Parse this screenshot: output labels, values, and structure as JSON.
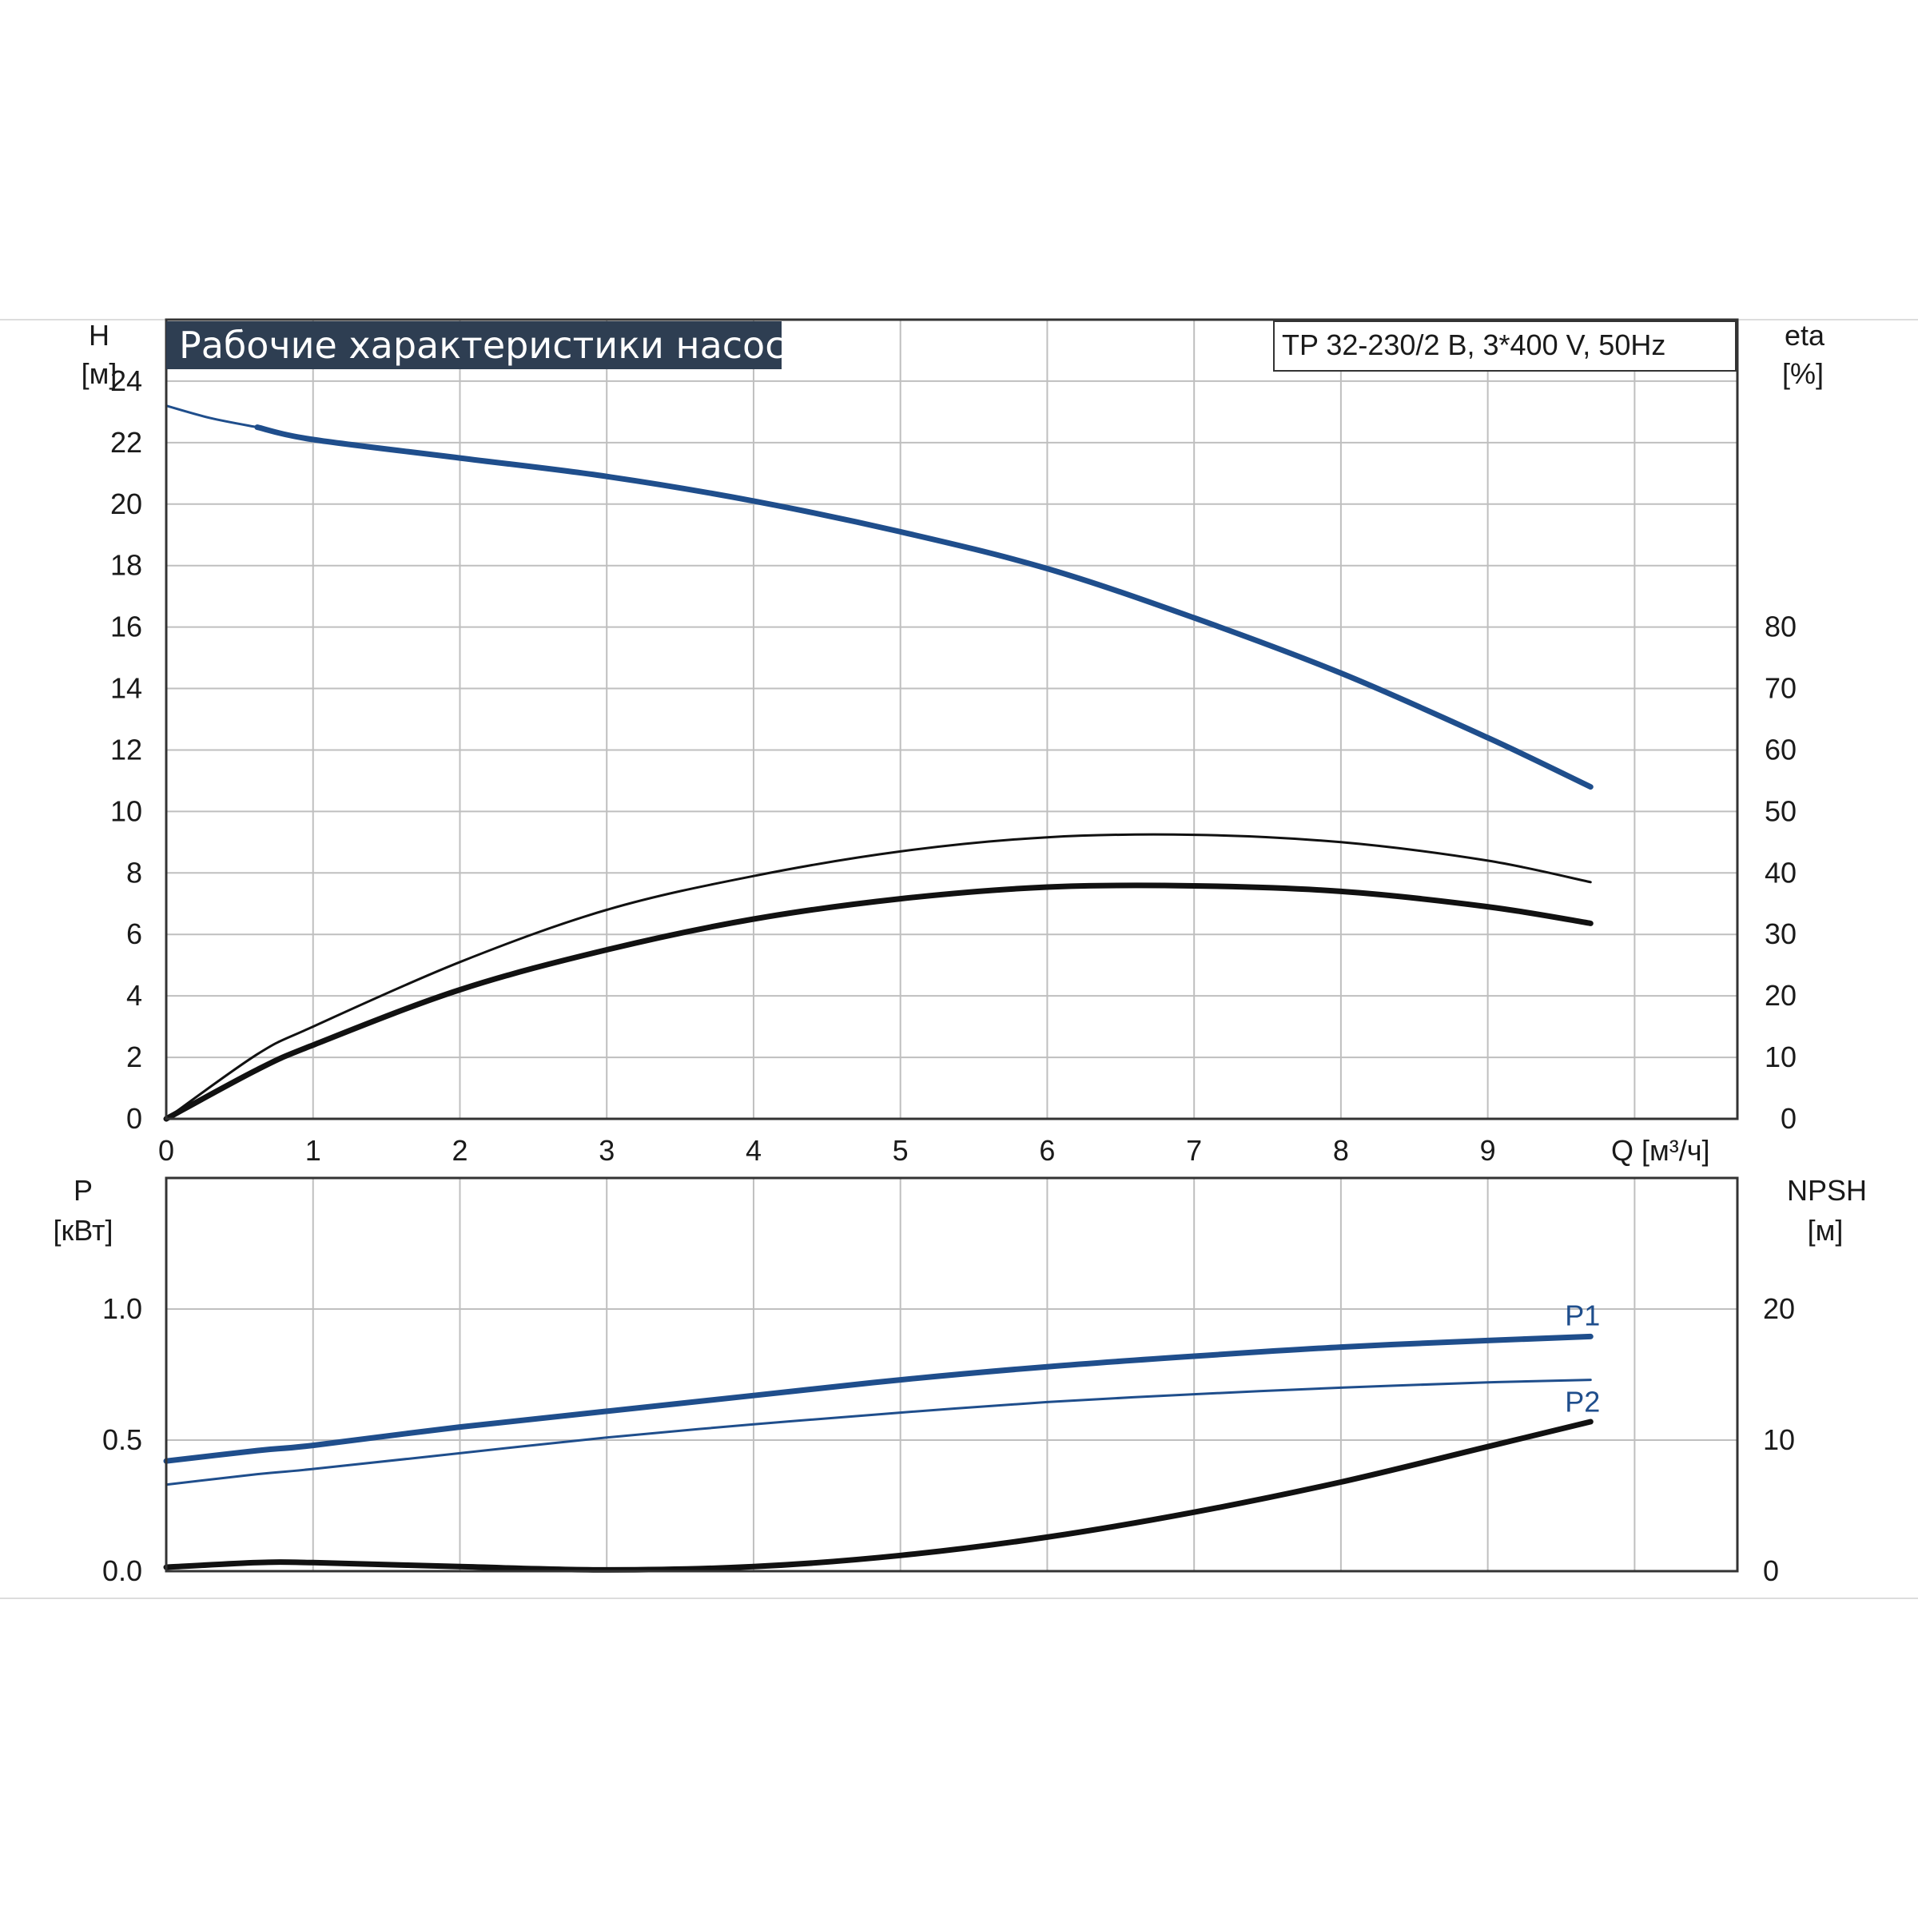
{
  "title": "Рабочие характеристики насоса",
  "model": "TP 32-230/2 B, 3*400 V, 50Hz",
  "colors": {
    "blue": "#1f4e8c",
    "black": "#111111",
    "grid": "#bfbfbf",
    "title_bg": "#2e3e52"
  },
  "axes": {
    "h_label": "H",
    "h_unit": "[м]",
    "eta_label": "eta",
    "eta_unit": "[%]",
    "q_label": "Q [м³/ч]",
    "p_label": "P",
    "p_unit": "[кВт]",
    "npsh_label": "NPSH",
    "npsh_unit": "[м]"
  },
  "chart_data": [
    {
      "type": "line",
      "panel": "upper",
      "x_label": "Q [м³/ч]",
      "x_ticks": [
        "0",
        "1",
        "2",
        "3",
        "4",
        "5",
        "6",
        "7",
        "8",
        "9"
      ],
      "xlim": [
        0,
        10.7
      ],
      "y_left": {
        "label": "H [м]",
        "ylim": [
          0,
          26
        ],
        "ticks": [
          "0",
          "2",
          "4",
          "6",
          "8",
          "10",
          "12",
          "14",
          "16",
          "18",
          "20",
          "22",
          "24"
        ]
      },
      "y_right": {
        "label": "eta [%]",
        "ylim": [
          0,
          130
        ],
        "ticks": [
          "0",
          "10",
          "20",
          "30",
          "40",
          "50",
          "60",
          "70",
          "80"
        ]
      },
      "grid": true,
      "series": [
        {
          "key": "H-extension",
          "axis": "left",
          "style": "blue-thin",
          "x": [
            0,
            0.3,
            0.62
          ],
          "y": [
            23.2,
            22.8,
            22.5
          ]
        },
        {
          "key": "H",
          "axis": "left",
          "style": "blue-thick",
          "x": [
            0.62,
            1,
            2,
            3,
            4,
            5,
            6,
            7,
            8,
            9,
            9.7
          ],
          "y": [
            22.5,
            22.1,
            21.5,
            20.9,
            20.1,
            19.1,
            17.9,
            16.3,
            14.5,
            12.4,
            10.8
          ]
        },
        {
          "key": "eta-thin",
          "axis": "right",
          "style": "black-thin",
          "x": [
            0,
            0.62,
            1,
            2,
            3,
            4,
            5,
            6,
            7,
            8,
            9,
            9.7
          ],
          "y": [
            0,
            10.5,
            15,
            25.5,
            34,
            39.5,
            43.5,
            45.8,
            46.2,
            45,
            42,
            38.5
          ]
        },
        {
          "key": "eta-thick",
          "axis": "right",
          "style": "black-thick",
          "x": [
            0,
            0.62,
            1,
            2,
            3,
            4,
            5,
            6,
            7,
            8,
            9,
            9.7
          ],
          "y": [
            0,
            8,
            12,
            21,
            27.5,
            32.5,
            35.8,
            37.7,
            37.9,
            37,
            34.5,
            31.8
          ]
        }
      ]
    },
    {
      "type": "line",
      "panel": "lower",
      "xlim": [
        0,
        10.7
      ],
      "y_left": {
        "label": "P [кВт]",
        "ylim": [
          0,
          1.5
        ],
        "ticks": [
          "0.0",
          "0.5",
          "1.0"
        ]
      },
      "y_right": {
        "label": "NPSH [м]",
        "ylim": [
          0,
          30
        ],
        "ticks": [
          "0",
          "10",
          "20"
        ]
      },
      "grid": true,
      "series": [
        {
          "key": "P1",
          "name": "P1",
          "axis": "left",
          "style": "blue-thick",
          "x": [
            0,
            0.62,
            1,
            2,
            3,
            4,
            5,
            6,
            7,
            8,
            9,
            9.7
          ],
          "y": [
            0.42,
            0.46,
            0.48,
            0.55,
            0.61,
            0.67,
            0.73,
            0.78,
            0.82,
            0.855,
            0.88,
            0.895
          ]
        },
        {
          "key": "P2",
          "name": "P2",
          "axis": "left",
          "style": "blue-thin",
          "x": [
            0,
            0.62,
            1,
            2,
            3,
            4,
            5,
            6,
            7,
            8,
            9,
            9.7
          ],
          "y": [
            0.33,
            0.37,
            0.39,
            0.45,
            0.51,
            0.56,
            0.605,
            0.645,
            0.675,
            0.7,
            0.72,
            0.73
          ]
        },
        {
          "key": "NPSH",
          "axis": "right",
          "style": "black-thick",
          "x": [
            0,
            0.62,
            1,
            2,
            3,
            4,
            5,
            6,
            7,
            8,
            9,
            9.7
          ],
          "y": [
            0.3,
            0.65,
            0.65,
            0.35,
            0.1,
            0.35,
            1.2,
            2.6,
            4.5,
            6.8,
            9.5,
            11.4
          ]
        }
      ]
    }
  ]
}
